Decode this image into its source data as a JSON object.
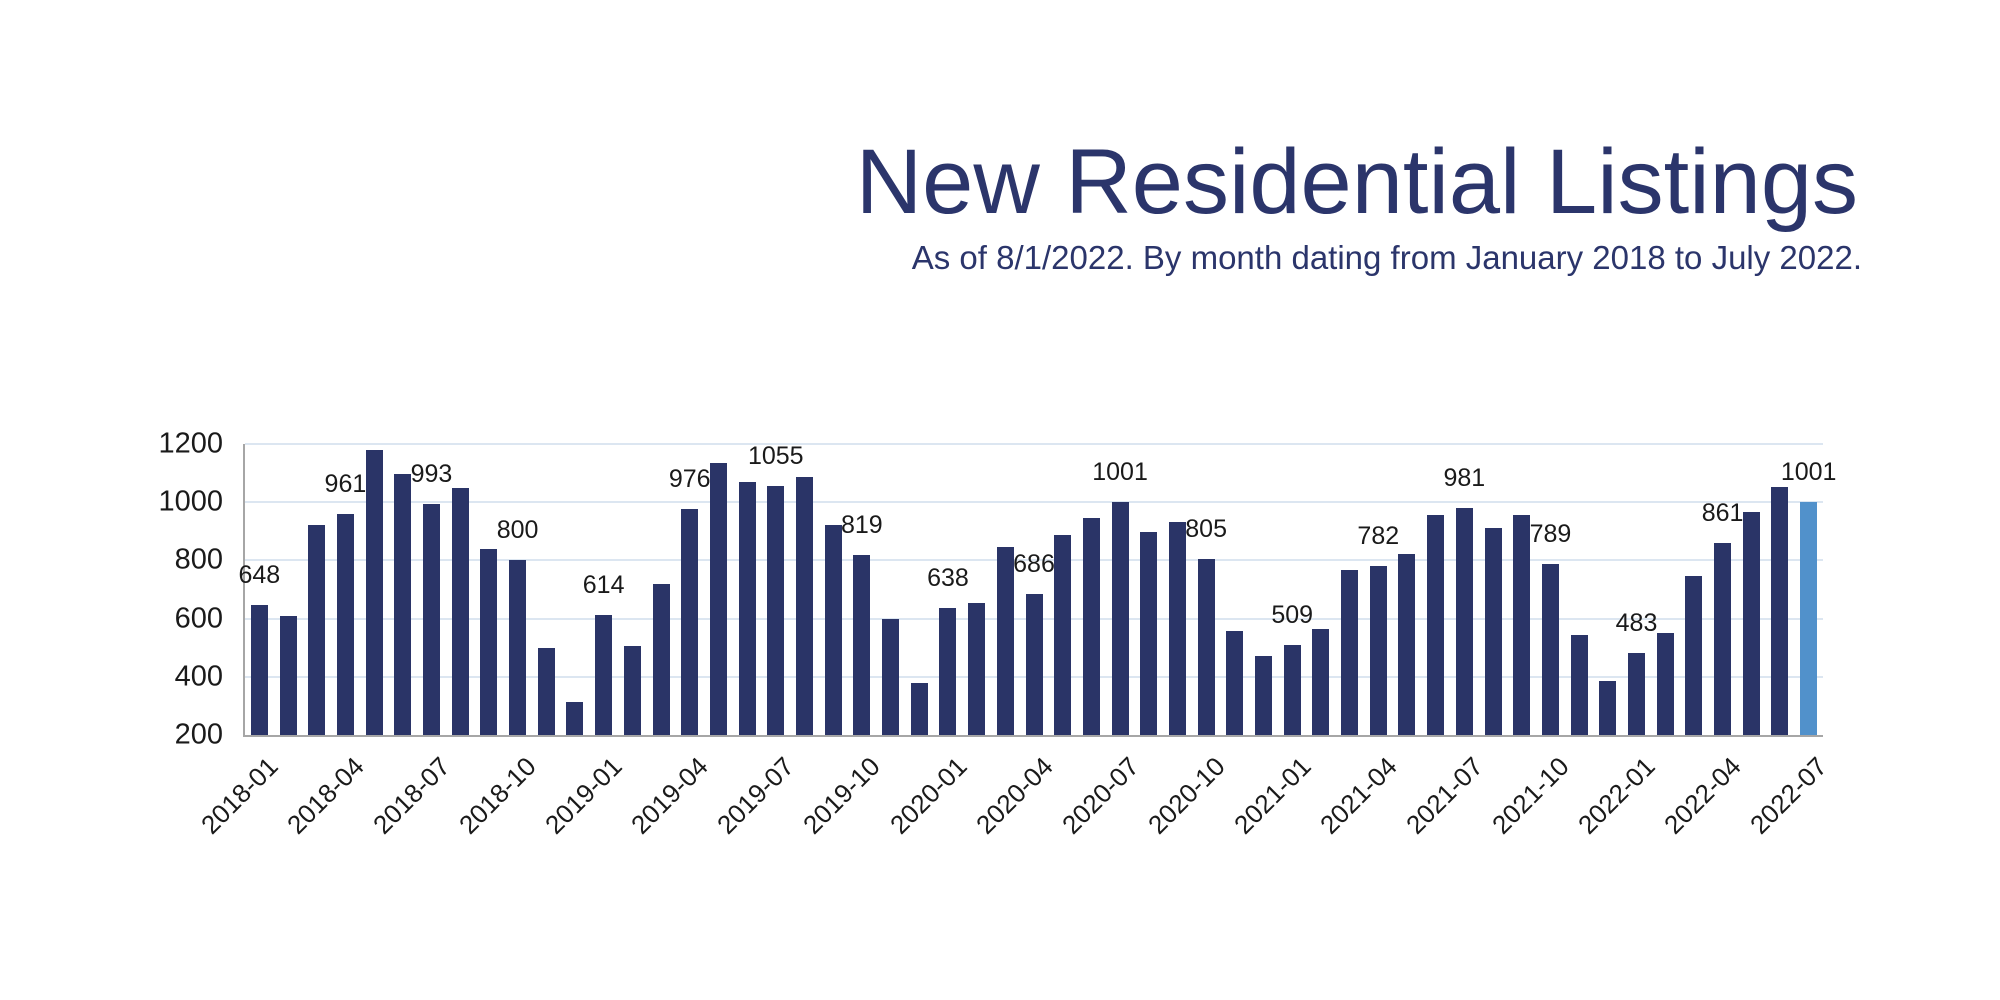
{
  "header": {
    "title": "New Residential Listings",
    "subtitle": "As of 8/1/2022. By month dating from January 2018 to July 2022."
  },
  "chart_data": {
    "type": "bar",
    "title": "New Residential Listings",
    "subtitle": "As of 8/1/2022. By month dating from January 2018 to July 2022.",
    "xlabel": "",
    "ylabel": "",
    "ylim": [
      200,
      1200
    ],
    "yticks": [
      200,
      400,
      600,
      800,
      1000,
      1200
    ],
    "grid": "horizontal",
    "legend_position": "none",
    "xtick_interval": 3,
    "data_label_interval": 3,
    "highlight_month": "2022-07",
    "x": [
      "2018-01",
      "2018-02",
      "2018-03",
      "2018-04",
      "2018-05",
      "2018-06",
      "2018-07",
      "2018-08",
      "2018-09",
      "2018-10",
      "2018-11",
      "2018-12",
      "2019-01",
      "2019-02",
      "2019-03",
      "2019-04",
      "2019-05",
      "2019-06",
      "2019-07",
      "2019-08",
      "2019-09",
      "2019-10",
      "2019-11",
      "2019-12",
      "2020-01",
      "2020-02",
      "2020-03",
      "2020-04",
      "2020-05",
      "2020-06",
      "2020-07",
      "2020-08",
      "2020-09",
      "2020-10",
      "2020-11",
      "2020-12",
      "2021-01",
      "2021-02",
      "2021-03",
      "2021-04",
      "2021-05",
      "2021-06",
      "2021-07",
      "2021-08",
      "2021-09",
      "2021-10",
      "2021-11",
      "2021-12",
      "2022-01",
      "2022-02",
      "2022-03",
      "2022-04",
      "2022-05",
      "2022-06",
      "2022-07"
    ],
    "values": [
      648,
      610,
      922,
      961,
      1178,
      1098,
      993,
      1048,
      840,
      800,
      500,
      313,
      614,
      505,
      720,
      976,
      1136,
      1070,
      1055,
      1088,
      922,
      819,
      598,
      378,
      638,
      652,
      846,
      686,
      888,
      947,
      1001,
      896,
      933,
      805,
      558,
      470,
      509,
      565,
      766,
      782,
      823,
      956,
      981,
      910,
      956,
      789,
      545,
      385,
      483,
      552,
      748,
      861,
      965,
      1052,
      1001
    ],
    "labeled_points": {
      "2018-01": 648,
      "2018-04": 961,
      "2018-07": 993,
      "2018-10": 800,
      "2019-01": 614,
      "2019-04": 976,
      "2019-07": 1055,
      "2019-10": 819,
      "2020-01": 638,
      "2020-04": 686,
      "2020-07": 1001,
      "2020-10": 805,
      "2021-01": 509,
      "2021-04": 782,
      "2021-07": 981,
      "2021-10": 789,
      "2022-01": 483,
      "2022-04": 861,
      "2022-07": 1001
    },
    "colors": {
      "bar": "#2A3467",
      "highlight_bar": "#5191CB",
      "grid": "#DCE6F1",
      "axis": "#A6A6A6",
      "tick_text": "#1A1A1A",
      "title_text": "#2B356B"
    }
  }
}
